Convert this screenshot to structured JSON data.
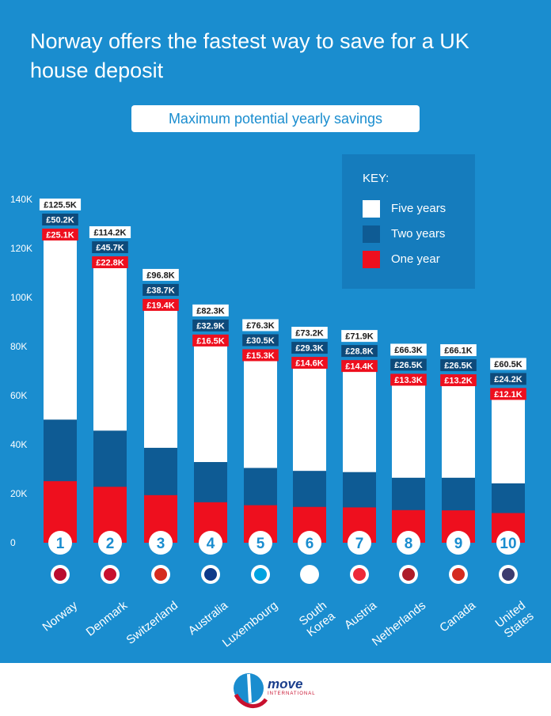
{
  "title": "Norway offers the fastest way to save for a UK house deposit",
  "subtitle": "Maximum potential yearly savings",
  "key": {
    "title": "KEY:",
    "items": [
      {
        "label": "Five years",
        "color": "#ffffff"
      },
      {
        "label": "Two years",
        "color": "#0e5b94"
      },
      {
        "label": "One year",
        "color": "#ee0f1e"
      }
    ]
  },
  "colors": {
    "background": "#1a8dcf",
    "five": "#ffffff",
    "two": "#0e5b94",
    "one": "#ee0f1e",
    "label_dark": "#0e4a7a"
  },
  "chart_data": {
    "type": "bar",
    "title": "Maximum potential yearly savings",
    "ylim": [
      0,
      140000
    ],
    "y_ticks": [
      "0",
      "20K",
      "40K",
      "60K",
      "80K",
      "100K",
      "120K",
      "140K"
    ],
    "categories": [
      "Norway",
      "Denmark",
      "Switzerland",
      "Australia",
      "Luxembourg",
      "South Korea",
      "Austria",
      "Netherlands",
      "Canada",
      "United States"
    ],
    "ranks": [
      "1",
      "2",
      "3",
      "4",
      "5",
      "6",
      "7",
      "8",
      "9",
      "10"
    ],
    "series": [
      {
        "name": "Five years",
        "values": [
          125500,
          114200,
          96800,
          82300,
          76300,
          73200,
          71900,
          66300,
          66100,
          60500
        ],
        "labels": [
          "£125.5K",
          "£114.2K",
          "£96.8K",
          "£82.3K",
          "£76.3K",
          "£73.2K",
          "£71.9K",
          "£66.3K",
          "£66.1K",
          "£60.5K"
        ]
      },
      {
        "name": "Two years",
        "values": [
          50200,
          45700,
          38700,
          32900,
          30500,
          29300,
          28800,
          26500,
          26500,
          24200
        ],
        "labels": [
          "£50.2K",
          "£45.7K",
          "£38.7K",
          "£32.9K",
          "£30.5K",
          "£29.3K",
          "£28.8K",
          "£26.5K",
          "£26.5K",
          "£24.2K"
        ]
      },
      {
        "name": "One year",
        "values": [
          25100,
          22800,
          19400,
          16500,
          15300,
          14600,
          14400,
          13300,
          13200,
          12100
        ],
        "labels": [
          "£25.1K",
          "£22.8K",
          "£19.4K",
          "£16.5K",
          "£15.3K",
          "£14.6K",
          "£14.4K",
          "£13.3K",
          "£13.2K",
          "£12.1K"
        ]
      }
    ]
  },
  "logo": {
    "brand": "move",
    "tagline": "INTERNATIONAL"
  }
}
